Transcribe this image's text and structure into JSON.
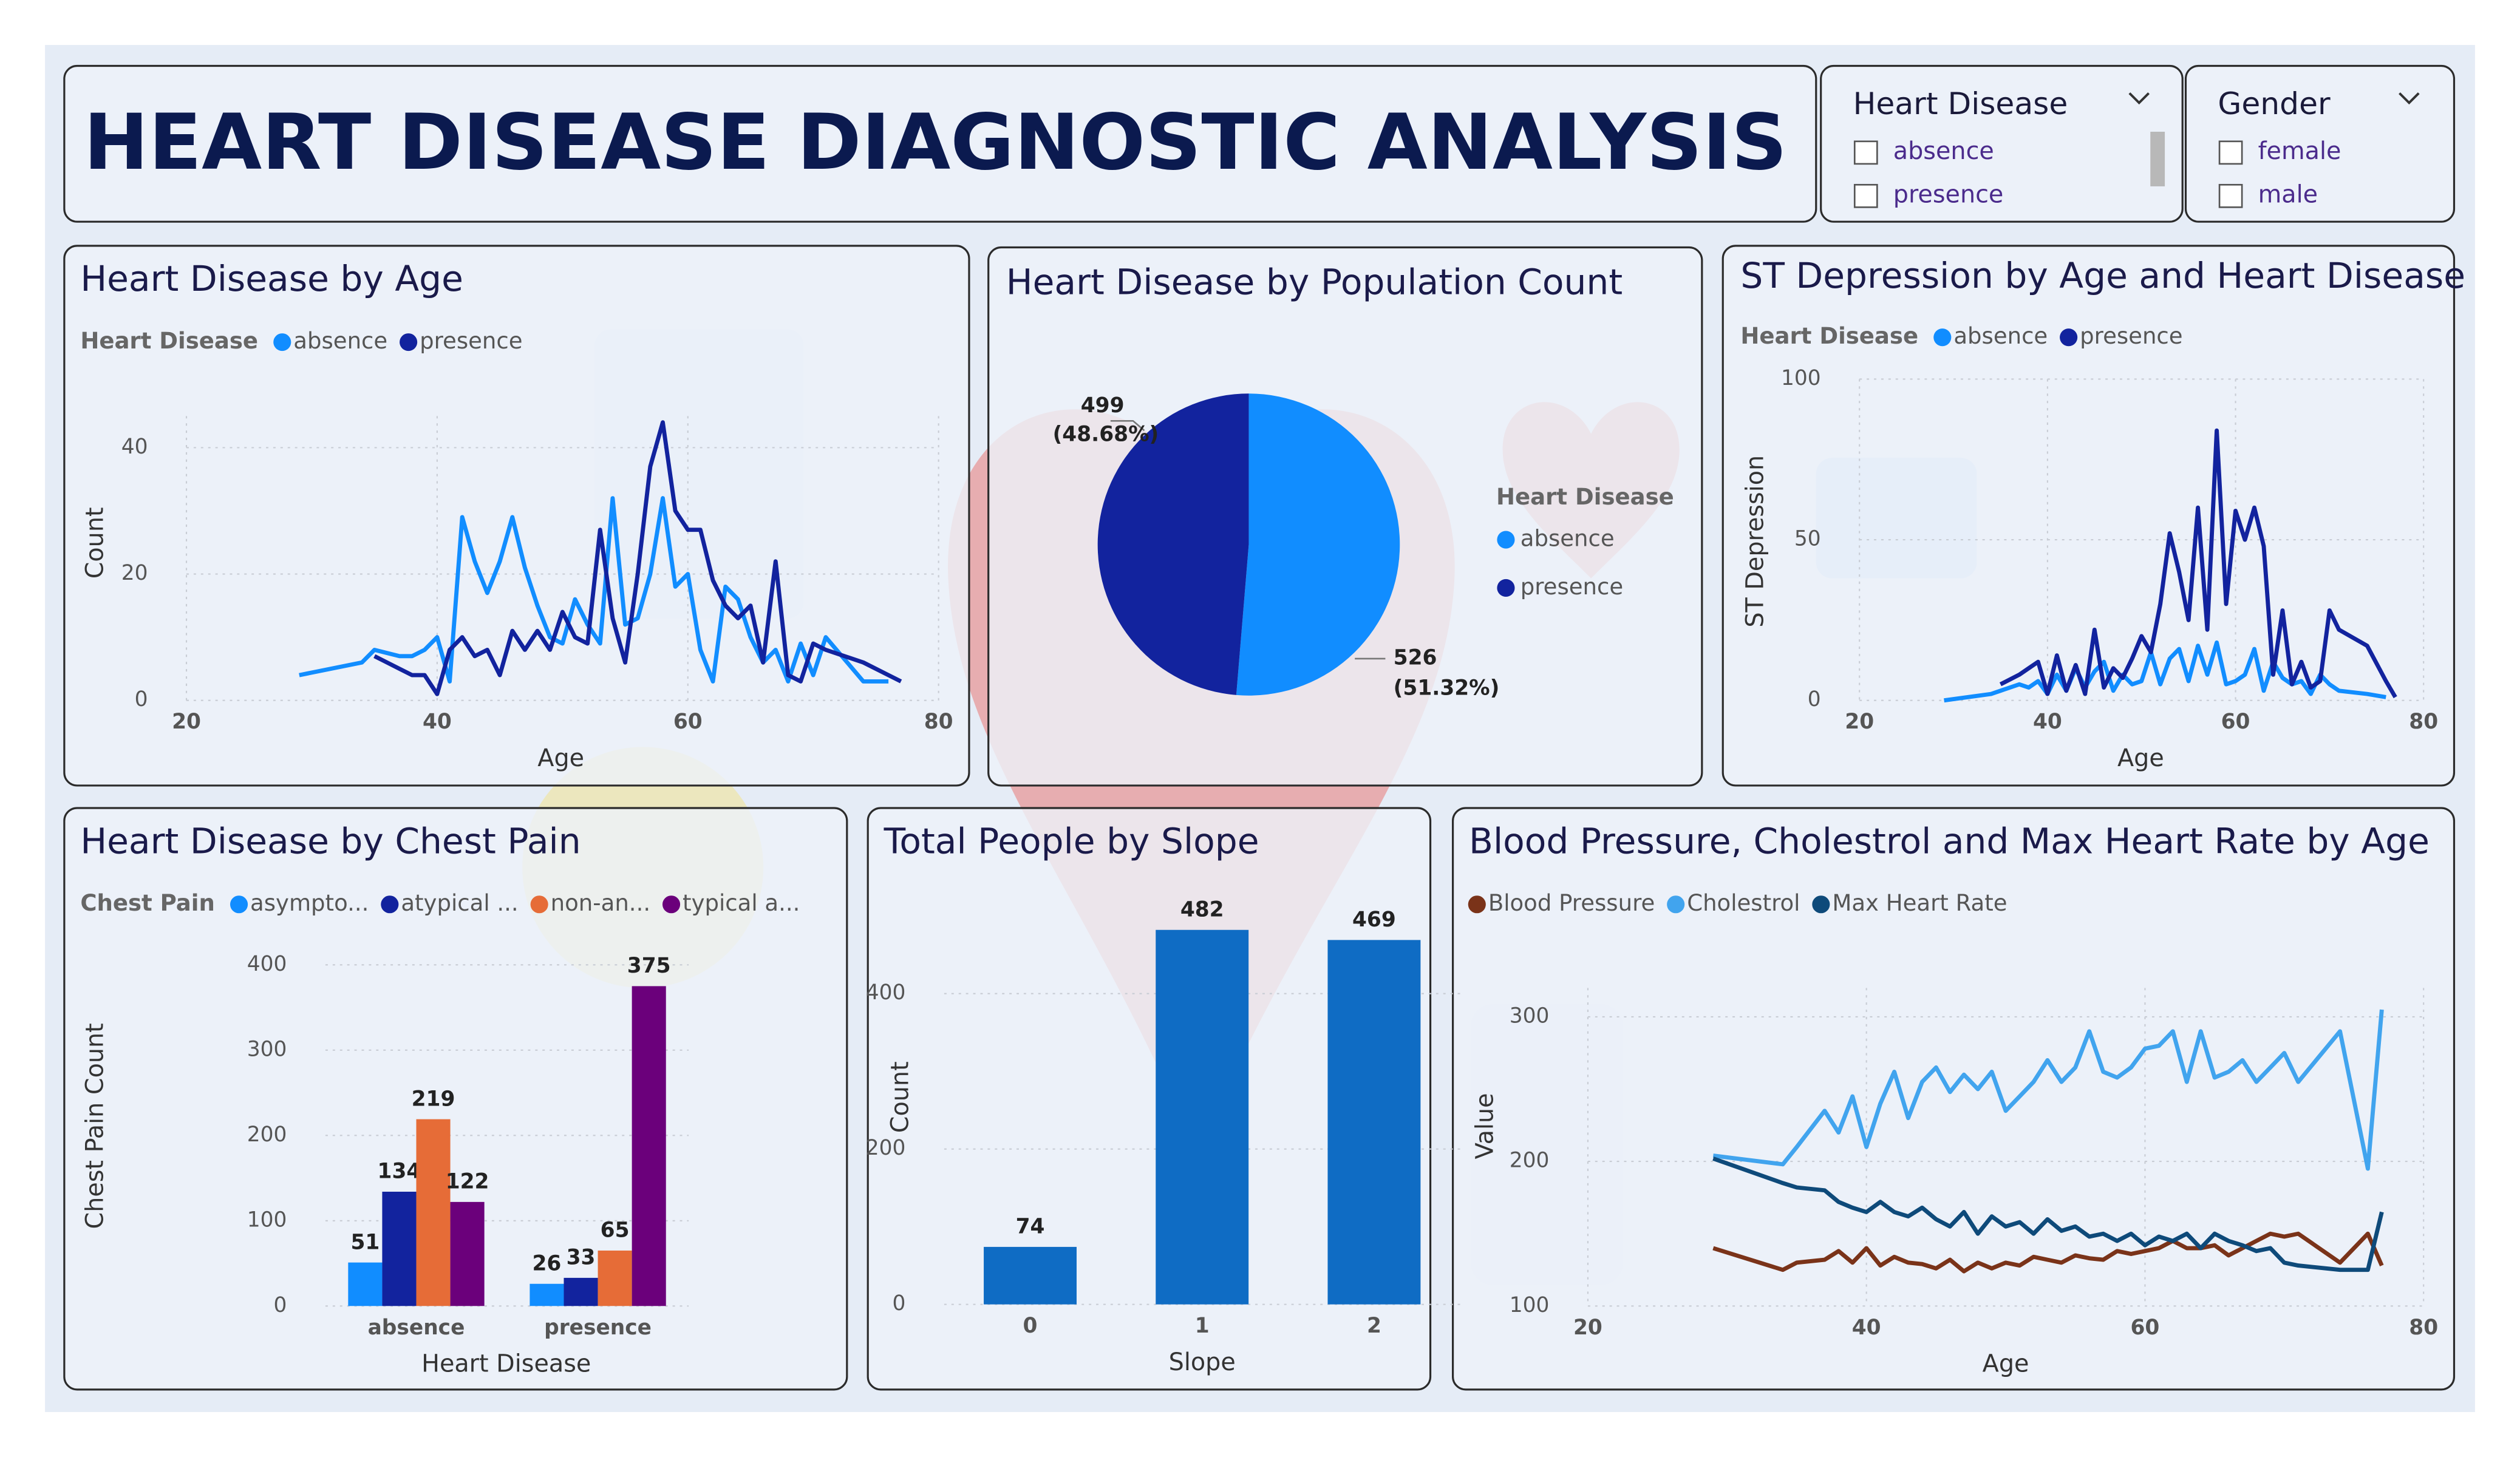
{
  "header": {
    "title": "HEART DISEASE DIAGNOSTIC ANALYSIS"
  },
  "slicers": [
    {
      "title": "Heart Disease",
      "options": [
        "absence",
        "presence"
      ]
    },
    {
      "title": "Gender",
      "options": [
        "female",
        "male"
      ]
    }
  ],
  "chart_data": [
    {
      "type": "line",
      "title": "Heart Disease by Age",
      "legend_title": "Heart Disease",
      "x_label": "Age",
      "y_label": "Count",
      "x": [
        29,
        34,
        35,
        37,
        38,
        39,
        40,
        41,
        42,
        43,
        44,
        45,
        46,
        47,
        48,
        49,
        50,
        51,
        52,
        53,
        54,
        55,
        56,
        57,
        58,
        59,
        60,
        61,
        62,
        63,
        64,
        65,
        66,
        67,
        68,
        69,
        70,
        71,
        74,
        76,
        77
      ],
      "series": [
        {
          "name": "absence",
          "color": "#118dff",
          "values": [
            4,
            6,
            8,
            7,
            7,
            8,
            10,
            3,
            29,
            22,
            17,
            22,
            29,
            21,
            15,
            10,
            9,
            16,
            12,
            9,
            32,
            12,
            13,
            20,
            32,
            18,
            20,
            8,
            3,
            18,
            16,
            10,
            6,
            8,
            3,
            9,
            4,
            10,
            3,
            3,
            null
          ]
        },
        {
          "name": "presence",
          "color": "#12239e",
          "values": [
            null,
            null,
            7,
            5,
            4,
            4,
            1,
            8,
            10,
            7,
            8,
            4,
            11,
            8,
            11,
            8,
            14,
            10,
            9,
            27,
            13,
            6,
            20,
            37,
            44,
            30,
            27,
            27,
            19,
            15,
            13,
            15,
            6,
            22,
            4,
            3,
            9,
            8,
            6,
            4,
            3
          ]
        }
      ],
      "xlim": [
        20,
        80
      ],
      "xticks": [
        20,
        40,
        60,
        80
      ],
      "ylim": [
        0,
        45
      ],
      "yticks": [
        0,
        20,
        40
      ],
      "grid": true
    },
    {
      "type": "pie",
      "title": "Heart Disease by Population Count",
      "legend_title": "Heart Disease",
      "categories": [
        "absence",
        "presence"
      ],
      "values": [
        526,
        499
      ],
      "colors": [
        "#118dff",
        "#12239e"
      ],
      "percentages": [
        51.32,
        48.68
      ],
      "percentage_labels": [
        "(51.32%)",
        "(48.68%)"
      ]
    },
    {
      "type": "line",
      "title": "ST Depression by Age and Heart Disease",
      "legend_title": "Heart Disease",
      "x_label": "Age",
      "y_label": "ST Depression",
      "x": [
        29,
        34,
        35,
        37,
        38,
        39,
        40,
        41,
        42,
        43,
        44,
        45,
        46,
        47,
        48,
        49,
        50,
        51,
        52,
        53,
        54,
        55,
        56,
        57,
        58,
        59,
        60,
        61,
        62,
        63,
        64,
        65,
        66,
        67,
        68,
        69,
        70,
        71,
        74,
        76,
        77
      ],
      "series": [
        {
          "name": "absence",
          "color": "#118dff",
          "values": [
            0,
            2,
            3,
            5,
            4,
            6,
            2,
            8,
            3,
            10,
            4,
            9,
            12,
            3,
            8,
            5,
            6,
            15,
            5,
            13,
            16,
            6,
            17,
            8,
            18,
            5,
            6,
            8,
            16,
            3,
            12,
            7,
            5,
            6,
            2,
            8,
            5,
            3,
            2,
            1,
            null
          ]
        },
        {
          "name": "presence",
          "color": "#12239e",
          "values": [
            null,
            null,
            5,
            8,
            10,
            12,
            2,
            14,
            3,
            11,
            2,
            22,
            4,
            10,
            7,
            13,
            20,
            15,
            30,
            52,
            40,
            25,
            60,
            22,
            84,
            30,
            59,
            50,
            60,
            48,
            8,
            28,
            5,
            12,
            4,
            6,
            28,
            22,
            17,
            6,
            1
          ]
        }
      ],
      "xlim": [
        20,
        80
      ],
      "xticks": [
        20,
        40,
        60,
        80
      ],
      "ylim": [
        0,
        100
      ],
      "yticks": [
        0,
        50,
        100
      ],
      "grid": true
    },
    {
      "type": "bar",
      "title": "Heart Disease by Chest Pain",
      "legend_title": "Chest Pain",
      "x_label": "Heart Disease",
      "y_label": "Chest Pain Count",
      "categories": [
        "absence",
        "presence"
      ],
      "series": [
        {
          "name": "asympto...",
          "color": "#118dff",
          "values": [
            51,
            26
          ]
        },
        {
          "name": "atypical ...",
          "color": "#12239e",
          "values": [
            134,
            33
          ]
        },
        {
          "name": "non-an...",
          "color": "#e66c37",
          "values": [
            219,
            65
          ]
        },
        {
          "name": "typical a...",
          "color": "#6b007b",
          "values": [
            122,
            375
          ]
        }
      ],
      "ylim": [
        0,
        420
      ],
      "yticks": [
        0,
        100,
        200,
        300,
        400
      ],
      "grid": true
    },
    {
      "type": "bar",
      "title": "Total People by Slope",
      "x_label": "Slope",
      "y_label": "Count",
      "categories": [
        "0",
        "1",
        "2"
      ],
      "values": [
        74,
        482,
        469
      ],
      "color": "#0f6cc4",
      "ylim": [
        0,
        490
      ],
      "yticks": [
        0,
        200,
        400
      ],
      "grid": true
    },
    {
      "type": "line",
      "title": "Blood Pressure, Cholestrol and Max Heart Rate by Age",
      "x_label": "Age",
      "y_label": "Value",
      "x": [
        29,
        34,
        35,
        37,
        38,
        39,
        40,
        41,
        42,
        43,
        44,
        45,
        46,
        47,
        48,
        49,
        50,
        51,
        52,
        53,
        54,
        55,
        56,
        57,
        58,
        59,
        60,
        61,
        62,
        63,
        64,
        65,
        66,
        67,
        68,
        69,
        70,
        71,
        74,
        76,
        77
      ],
      "series": [
        {
          "name": "Blood Pressure",
          "color": "#7a3319",
          "values": [
            140,
            125,
            130,
            132,
            138,
            130,
            140,
            128,
            134,
            130,
            129,
            126,
            132,
            124,
            130,
            126,
            130,
            128,
            134,
            132,
            130,
            135,
            133,
            132,
            138,
            136,
            138,
            140,
            145,
            140,
            140,
            142,
            135,
            140,
            145,
            150,
            148,
            150,
            130,
            150,
            128
          ]
        },
        {
          "name": "Cholestrol",
          "color": "#41a4ee",
          "values": [
            204,
            198,
            210,
            235,
            220,
            245,
            210,
            240,
            262,
            230,
            255,
            265,
            248,
            260,
            250,
            262,
            235,
            245,
            255,
            270,
            255,
            265,
            290,
            262,
            258,
            265,
            278,
            280,
            290,
            255,
            290,
            258,
            262,
            270,
            255,
            265,
            275,
            255,
            290,
            195,
            305
          ]
        },
        {
          "name": "Max Heart Rate",
          "color": "#0e4a7a",
          "values": [
            202,
            185,
            182,
            180,
            172,
            168,
            165,
            172,
            165,
            162,
            168,
            160,
            155,
            165,
            150,
            162,
            155,
            158,
            150,
            160,
            152,
            155,
            148,
            150,
            145,
            150,
            142,
            148,
            145,
            150,
            140,
            150,
            145,
            142,
            138,
            140,
            130,
            128,
            125,
            125,
            165
          ]
        }
      ],
      "xlim": [
        20,
        80
      ],
      "xticks": [
        20,
        40,
        60,
        80
      ],
      "ylim": [
        100,
        320
      ],
      "yticks": [
        100,
        200,
        300
      ],
      "grid": true
    }
  ]
}
